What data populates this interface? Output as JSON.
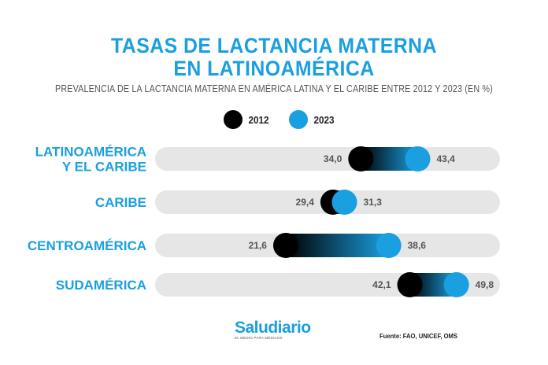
{
  "header": {
    "title_line1": "TASAS DE LACTANCIA MATERNA",
    "title_line2": "EN LATINOAMÉRICA",
    "subtitle": "PREVALENCIA DE LA LACTANCIA MATERNA EN AMÉRICA LATINA Y EL CARIBE ENTRE 2012 Y 2023 (EN %)"
  },
  "colors": {
    "series_2012": "#000000",
    "series_2023": "#1a9fe0",
    "track": "#e6e6e6",
    "category": "#1a9fe0"
  },
  "chart_data": {
    "type": "dumbbell",
    "title": "TASAS DE LACTANCIA MATERNA EN LATINOAMÉRICA",
    "subtitle": "PREVALENCIA DE LA LACTANCIA MATERNA EN AMÉRICA LATINA Y EL CARIBE ENTRE 2012 Y 2023 (EN %)",
    "categories": [
      {
        "lines": [
          "LATINOAMÉRICA",
          "Y EL CARIBE"
        ]
      },
      {
        "lines": [
          "CARIBE"
        ]
      },
      {
        "lines": [
          "CENTROAMÉRICA"
        ]
      },
      {
        "lines": [
          "SUDAMÉRICA"
        ]
      }
    ],
    "series": [
      {
        "name": "2012",
        "values": [
          34.0,
          29.4,
          21.6,
          42.1
        ],
        "labels": [
          "34,0",
          "29,4",
          "21,6",
          "42,1"
        ]
      },
      {
        "name": "2023",
        "values": [
          43.4,
          31.3,
          38.6,
          49.8
        ],
        "labels": [
          "43,4",
          "31,3",
          "38,6",
          "49,8"
        ]
      }
    ],
    "xlim": [
      0,
      57
    ],
    "legend_position": "top-center"
  },
  "footer": {
    "brand": "Saludiario",
    "brand_tagline": "EL MEDIO PARA MÉDICOS",
    "source": "Fuente: FAO, UNICEF, OMS"
  }
}
